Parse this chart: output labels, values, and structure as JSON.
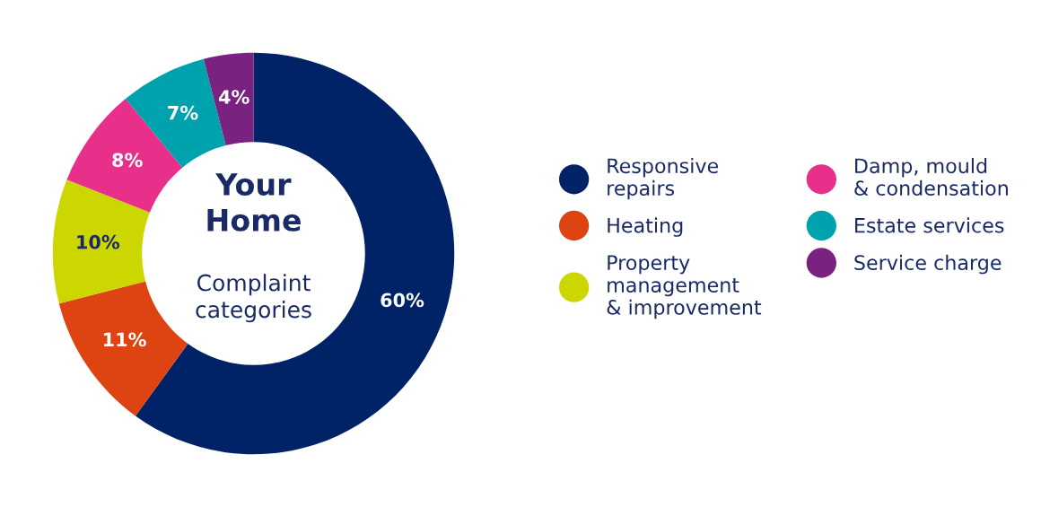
{
  "chart_data": {
    "type": "donut",
    "title": "Your\nHome",
    "subtitle": "Complaint\ncategories",
    "categories": [
      "Responsive\nrepairs",
      "Heating",
      "Property\nmanagement\n& improvement",
      "Damp, mould\n& condensation",
      "Estate services",
      "Service charge"
    ],
    "values": [
      60,
      11,
      10,
      8,
      7,
      4
    ],
    "value_labels": [
      "60%",
      "11%",
      "10%",
      "8%",
      "7%",
      "4%"
    ],
    "colors": [
      "#002266",
      "#dd4411",
      "#ccd600",
      "#e8308a",
      "#00a3ad",
      "#7a2280"
    ],
    "legend": "right"
  }
}
